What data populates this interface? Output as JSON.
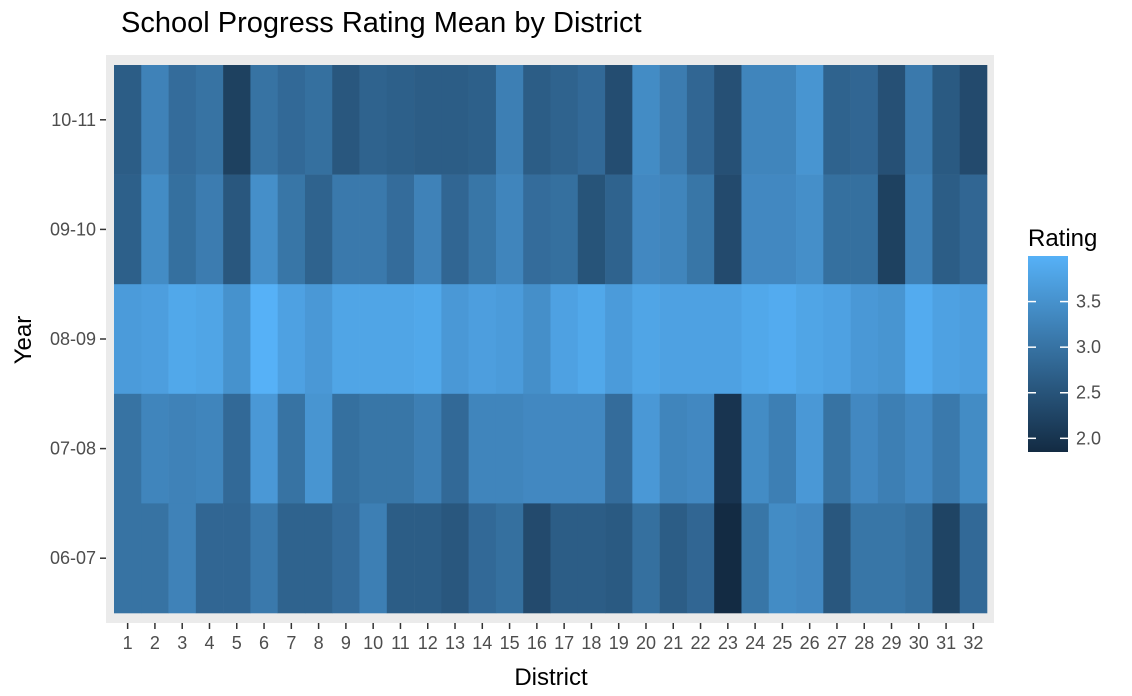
{
  "chart_data": {
    "type": "heatmap",
    "title": "School Progress Rating Mean by District",
    "xlabel": "District",
    "ylabel": "Year",
    "x": [
      "1",
      "2",
      "3",
      "4",
      "5",
      "6",
      "7",
      "8",
      "9",
      "10",
      "11",
      "12",
      "13",
      "14",
      "15",
      "16",
      "17",
      "18",
      "19",
      "20",
      "21",
      "22",
      "23",
      "24",
      "25",
      "26",
      "27",
      "28",
      "29",
      "30",
      "31",
      "32"
    ],
    "y": [
      "10-11",
      "09-10",
      "08-09",
      "07-08",
      "06-07"
    ],
    "values": [
      [
        2.65,
        3.25,
        2.9,
        3.0,
        2.2,
        3.0,
        2.85,
        2.95,
        2.55,
        2.75,
        2.7,
        2.65,
        2.65,
        2.7,
        3.2,
        2.65,
        2.75,
        2.85,
        2.4,
        3.4,
        3.15,
        2.8,
        2.45,
        3.3,
        3.3,
        3.55,
        2.75,
        2.8,
        2.45,
        3.1,
        2.6,
        2.35
      ],
      [
        2.7,
        3.4,
        2.95,
        3.15,
        2.55,
        3.45,
        3.05,
        2.75,
        3.1,
        3.1,
        2.9,
        3.25,
        2.8,
        3.05,
        3.3,
        2.9,
        2.95,
        2.5,
        2.75,
        3.35,
        3.3,
        3.05,
        2.35,
        3.35,
        3.35,
        3.45,
        2.95,
        2.95,
        2.2,
        3.2,
        2.65,
        2.8
      ],
      [
        3.65,
        3.7,
        3.85,
        3.8,
        3.5,
        4.0,
        3.75,
        3.6,
        3.8,
        3.8,
        3.8,
        3.85,
        3.6,
        3.7,
        3.65,
        3.45,
        3.75,
        3.85,
        3.65,
        3.8,
        3.75,
        3.75,
        3.75,
        3.85,
        3.9,
        3.8,
        3.75,
        3.6,
        3.55,
        3.9,
        3.75,
        3.7
      ],
      [
        3.0,
        3.3,
        3.25,
        3.3,
        2.85,
        3.6,
        3.0,
        3.55,
        2.95,
        3.05,
        3.05,
        3.2,
        2.85,
        3.3,
        3.3,
        3.35,
        3.35,
        3.35,
        2.9,
        3.6,
        3.3,
        3.35,
        2.0,
        3.4,
        3.2,
        3.6,
        3.0,
        3.35,
        3.2,
        3.35,
        3.1,
        3.4
      ],
      [
        3.0,
        3.0,
        3.25,
        2.8,
        2.8,
        3.1,
        2.75,
        2.75,
        2.9,
        3.2,
        2.65,
        2.65,
        2.55,
        2.85,
        2.95,
        2.35,
        2.65,
        2.65,
        2.6,
        2.95,
        2.65,
        2.8,
        1.85,
        3.05,
        3.4,
        3.35,
        2.55,
        3.05,
        3.05,
        2.95,
        2.25,
        2.85
      ]
    ],
    "legend": {
      "title": "Rating",
      "ticks": [
        3.5,
        3.0,
        2.5,
        2.0
      ],
      "tick_labels": [
        "3.5",
        "3.0",
        "2.5",
        "2.0"
      ],
      "range": [
        1.85,
        4.0
      ],
      "low_color": "#132B43",
      "high_color": "#56B1F7",
      "placement": "right"
    },
    "panel_background": "#EBEBEB"
  }
}
